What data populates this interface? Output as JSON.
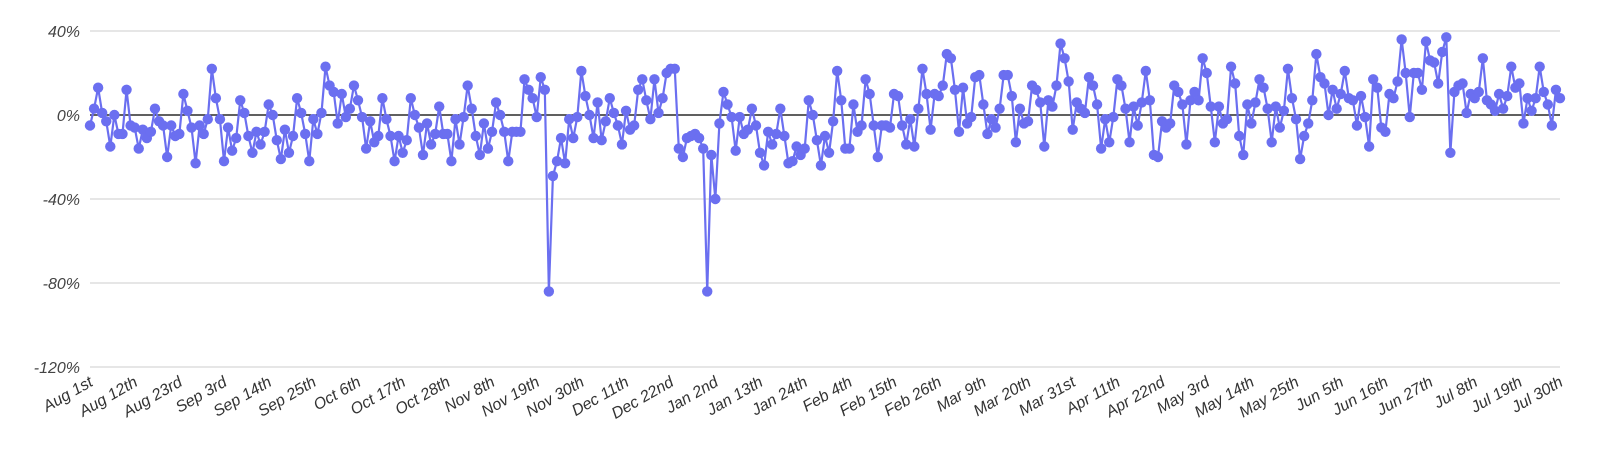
{
  "chart_data": {
    "type": "line",
    "title": "",
    "xlabel": "",
    "ylabel": "",
    "ylim": [
      -120,
      40
    ],
    "y_ticks": [
      "40%",
      "0%",
      "-40%",
      "-80%",
      "-120%"
    ],
    "y_tick_values": [
      40,
      0,
      -40,
      -80,
      -120
    ],
    "x_ticks": [
      "Aug 1st",
      "Aug 12th",
      "Aug 23rd",
      "Sep 3rd",
      "Sep 14th",
      "Sep 25th",
      "Oct 6th",
      "Oct 17th",
      "Oct 28th",
      "Nov 8th",
      "Nov 19th",
      "Nov 30th",
      "Dec 11th",
      "Dec 22nd",
      "Jan 2nd",
      "Jan 13th",
      "Jan 24th",
      "Feb 4th",
      "Feb 15th",
      "Feb 26th",
      "Mar 9th",
      "Mar 20th",
      "Mar 31st",
      "Apr 11th",
      "Apr 22nd",
      "May 3rd",
      "May 14th",
      "May 25th",
      "Jun 5th",
      "Jun 16th",
      "Jun 27th",
      "Jul 8th",
      "Jul 19th",
      "Jul 30th"
    ],
    "x_tick_index_step": 11,
    "grid": true,
    "zero_line": true,
    "legend": "none",
    "colors": {
      "series": "#6b6ff0",
      "zero_line": "#000000",
      "grid": "#cccccc"
    },
    "series": [
      {
        "values": [
          -5,
          3,
          13,
          1,
          -3,
          -15,
          0,
          -9,
          -9,
          12,
          -5,
          -6,
          -16,
          -7,
          -11,
          -8,
          3,
          -3,
          -5,
          -20,
          -5,
          -10,
          -9,
          10,
          2,
          -6,
          -23,
          -5,
          -9,
          -2,
          22,
          8,
          -2,
          -22,
          -6,
          -17,
          -11,
          7,
          1,
          -10,
          -18,
          -8,
          -14,
          -8,
          5,
          0,
          -12,
          -21,
          -7,
          -18,
          -10,
          8,
          1,
          -9,
          -22,
          -2,
          -9,
          1,
          23,
          14,
          11,
          -4,
          10,
          -1,
          3,
          14,
          7,
          -1,
          -16,
          -3,
          -13,
          -10,
          8,
          -2,
          -10,
          -22,
          -10,
          -18,
          -12,
          8,
          0,
          -6,
          -19,
          -4,
          -14,
          -9,
          4,
          -9,
          -9,
          -22,
          -2,
          -14,
          -1,
          14,
          3,
          -10,
          -19,
          -4,
          -16,
          -8,
          6,
          0,
          -8,
          -22,
          -8,
          -8,
          -8,
          17,
          12,
          8,
          -1,
          18,
          12,
          -84,
          -29,
          -22,
          -11,
          -23,
          -2,
          -11,
          -1,
          21,
          9,
          0,
          -11,
          6,
          -12,
          -3,
          8,
          1,
          -5,
          -14,
          2,
          -7,
          -5,
          12,
          17,
          7,
          -2,
          17,
          1,
          8,
          20,
          22,
          22,
          -16,
          -20,
          -11,
          -10,
          -9,
          -11,
          -16,
          -84,
          -19,
          -40,
          -4,
          11,
          5,
          -1,
          -17,
          -1,
          -9,
          -7,
          3,
          -5,
          -18,
          -24,
          -8,
          -14,
          -9,
          3,
          -10,
          -23,
          -22,
          -15,
          -19,
          -16,
          7,
          0,
          -12,
          -24,
          -10,
          -18,
          -3,
          21,
          7,
          -16,
          -16,
          5,
          -8,
          -5,
          17,
          10,
          -5,
          -20,
          -5,
          -5,
          -6,
          10,
          9,
          -5,
          -14,
          -2,
          -15,
          3,
          22,
          10,
          -7,
          10,
          9,
          14,
          29,
          27,
          12,
          -8,
          13,
          -4,
          -1,
          18,
          19,
          5,
          -9,
          -2,
          -6,
          3,
          19,
          19,
          9,
          -13,
          3,
          -4,
          -3,
          14,
          12,
          6,
          -15,
          7,
          4,
          14,
          34,
          27,
          16,
          -7,
          6,
          3,
          1,
          18,
          14,
          5,
          -16,
          -2,
          -13,
          -1,
          17,
          14,
          3,
          -13,
          4,
          -5,
          6,
          21,
          7,
          -19,
          -20,
          -3,
          -6,
          -4,
          14,
          11,
          5,
          -14,
          7,
          11,
          7,
          27,
          20,
          4,
          -13,
          4,
          -4,
          -2,
          23,
          15,
          -10,
          -19,
          5,
          -4,
          6,
          17,
          13,
          3,
          -13,
          4,
          -6,
          2,
          22,
          8,
          -2,
          -21,
          -10,
          -4,
          7,
          29,
          18,
          15,
          0,
          12,
          3,
          10,
          21,
          8,
          7,
          -5,
          9,
          -1,
          -15,
          17,
          13,
          -6,
          -8,
          10,
          8,
          16,
          36,
          20,
          -1,
          20,
          20,
          12,
          35,
          26,
          25,
          15,
          30,
          37,
          -18,
          11,
          14,
          15,
          1,
          10,
          8,
          11,
          27,
          7,
          5,
          2,
          10,
          3,
          9,
          23,
          13,
          15,
          -4,
          8,
          2,
          8,
          23,
          11,
          5,
          -5,
          12,
          8
        ]
      }
    ]
  }
}
